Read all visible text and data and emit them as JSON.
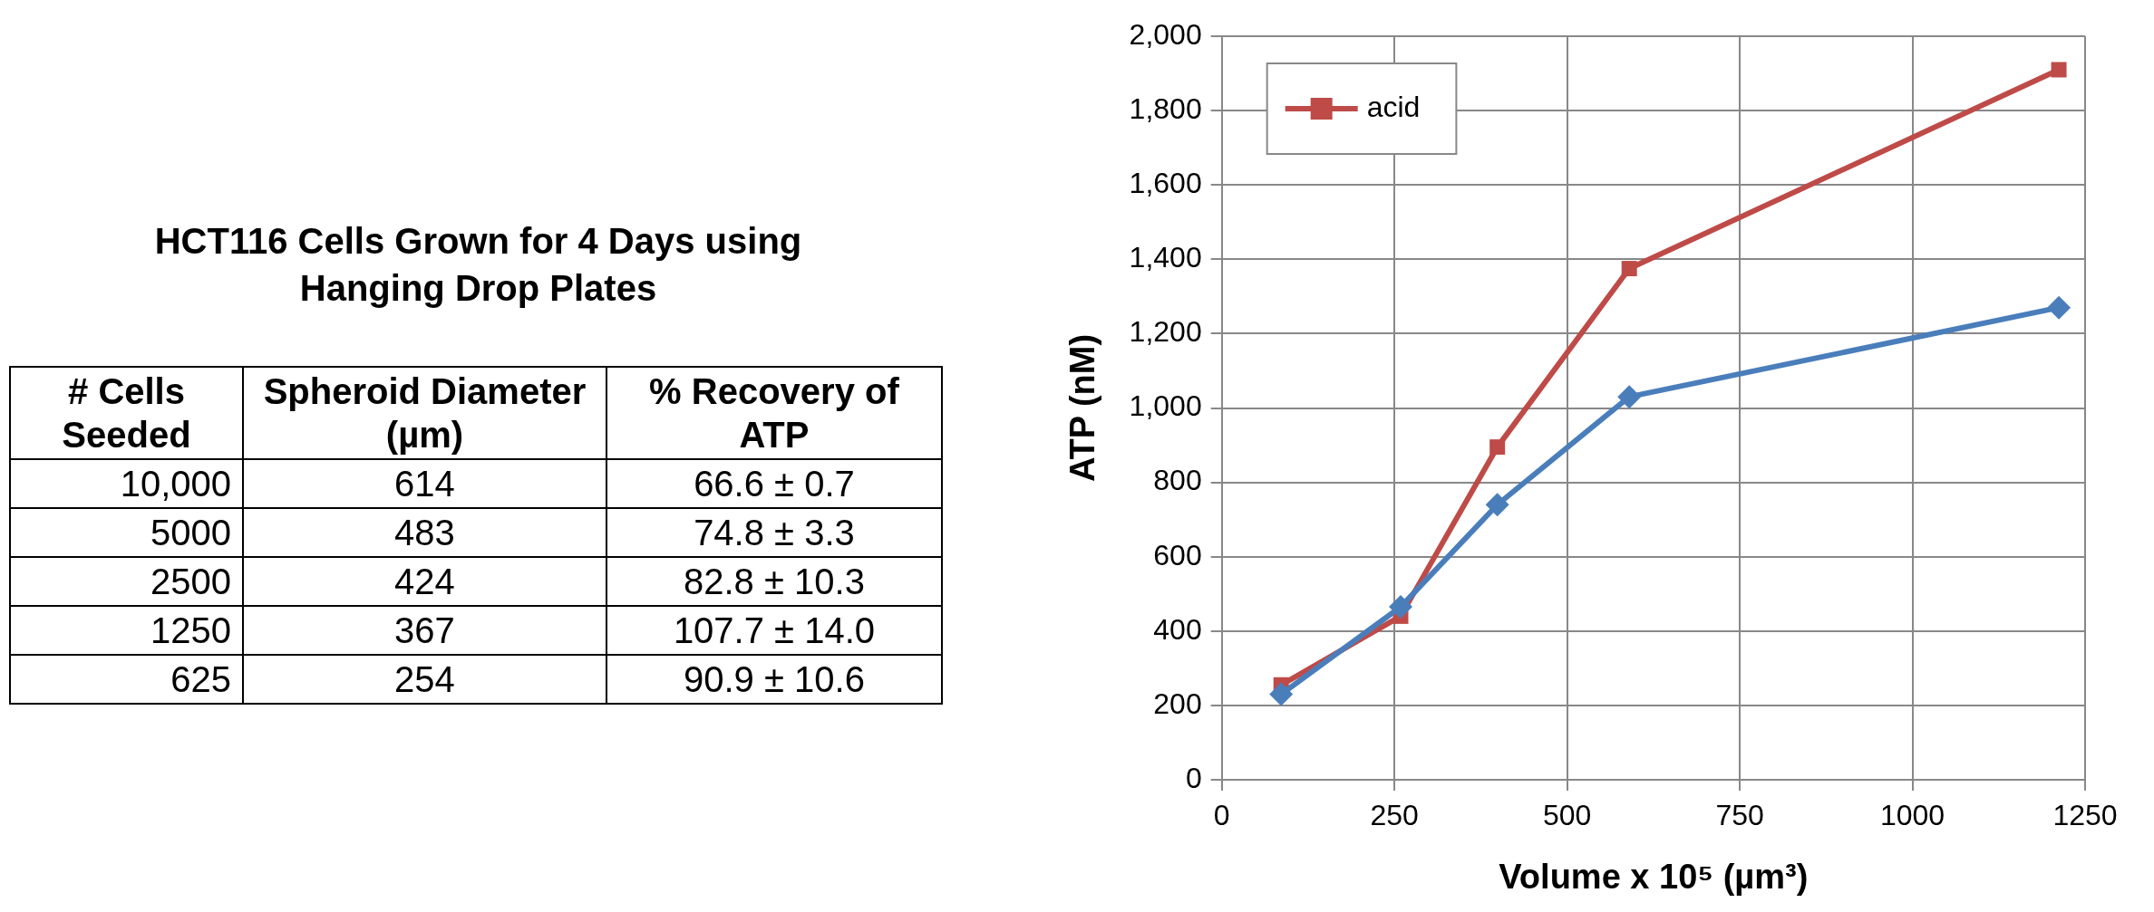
{
  "chart_data": [
    {
      "type": "other",
      "title": "HCT116 Cells Grown for 4 Days using Hanging Drop Plates",
      "annotations": [
        "# Cells Seeded",
        "Spheroid Diameter (µm)",
        "% Recovery of ATP",
        "10,000",
        "614",
        "66.6 ± 0.7",
        "5000",
        "483",
        "74.8 ± 3.3",
        "2500",
        "424",
        "82.8 ± 10.3",
        "1250",
        "367",
        "107.7 ± 14.0",
        "625",
        "254",
        "90.9 ± 10.6"
      ]
    },
    {
      "type": "line",
      "xlabel": "Volume x 10⁵ (µm³)",
      "ylabel": "ATP (nM)",
      "x": [
        86,
        259,
        399,
        590,
        1212
      ],
      "series": [
        {
          "color": "#4a7ebb",
          "marker": "diamond",
          "values": [
            230,
            465,
            740,
            1030,
            1270
          ]
        },
        {
          "name": "acid",
          "color": "#be4b48",
          "marker": "square",
          "values": [
            255,
            440,
            895,
            1375,
            1910
          ]
        }
      ],
      "xlim": [
        0,
        1250
      ],
      "xticks": [
        0,
        250,
        500,
        750,
        1000,
        1250
      ],
      "ylim": [
        0,
        2000
      ],
      "yticks": [
        0,
        200,
        400,
        600,
        800,
        {
          "value": 1000,
          "label": "1,000"
        },
        {
          "value": 1200,
          "label": "1,200"
        },
        {
          "value": 1400,
          "label": "1,400"
        },
        {
          "value": 1600,
          "label": "1,600"
        },
        {
          "value": 1800,
          "label": "1,800"
        },
        {
          "value": 2000,
          "label": "2,000"
        }
      ],
      "grid": true,
      "legend": "top left",
      "line_style": "solid"
    }
  ]
}
